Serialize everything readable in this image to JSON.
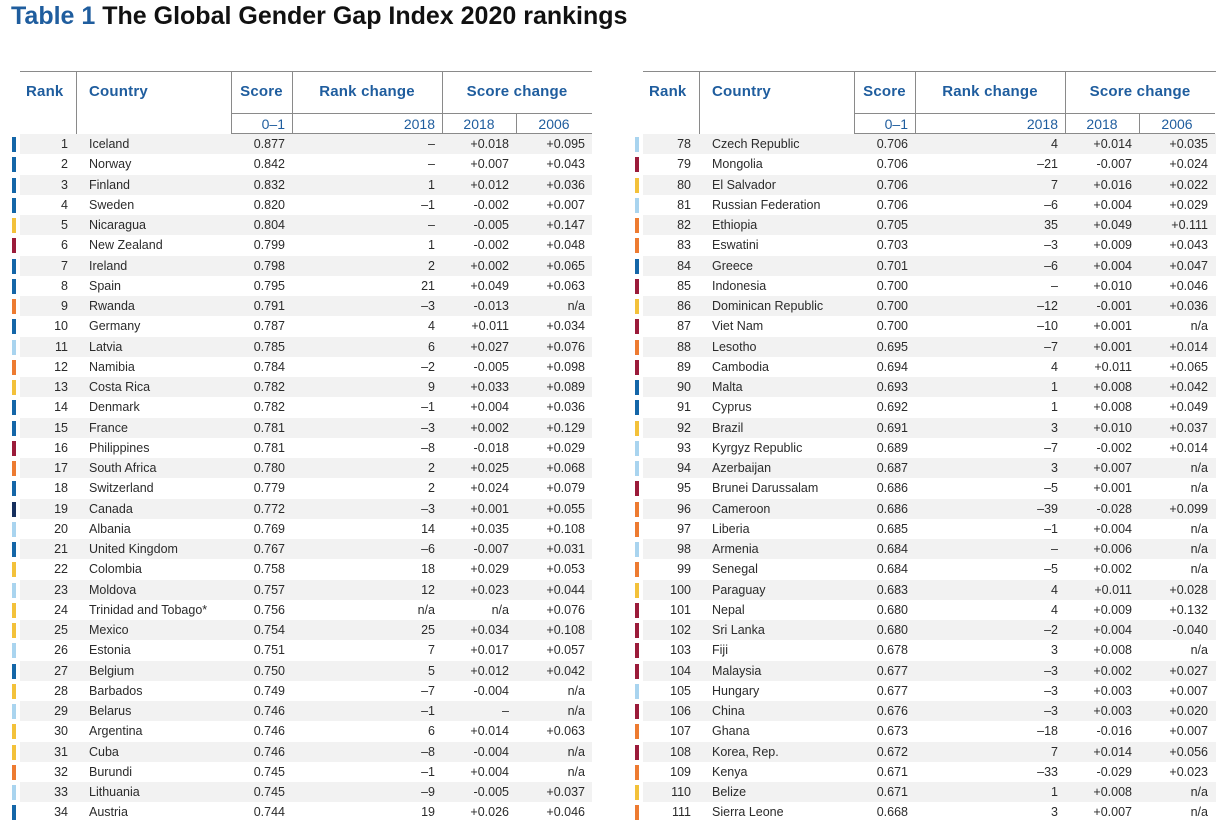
{
  "title": {
    "label": "Table 1",
    "text": "The Global Gender Gap Index 2020 rankings"
  },
  "headers": {
    "rank": "Rank",
    "country": "Country",
    "score": "Score",
    "rank_change": "Rank change",
    "score_change": "Score change",
    "score_sub": "0–1",
    "rank_change_sub": "2018",
    "score_change_sub1": "2018",
    "score_change_sub2": "2006"
  },
  "region_colors": {
    "europe": "#1466a8",
    "latin": "#f3c13a",
    "light": "#a9d4ef",
    "africa": "#ed7b31",
    "asia": "#9b1b3a",
    "northam": "#16305e"
  },
  "left_rows": [
    {
      "rank": "1",
      "country": "Iceland",
      "score": "0.877",
      "rank_change": "–",
      "sc2018": "+0.018",
      "sc2006": "+0.095",
      "region": "europe"
    },
    {
      "rank": "2",
      "country": "Norway",
      "score": "0.842",
      "rank_change": "–",
      "sc2018": "+0.007",
      "sc2006": "+0.043",
      "region": "europe"
    },
    {
      "rank": "3",
      "country": "Finland",
      "score": "0.832",
      "rank_change": "1",
      "sc2018": "+0.012",
      "sc2006": "+0.036",
      "region": "europe"
    },
    {
      "rank": "4",
      "country": "Sweden",
      "score": "0.820",
      "rank_change": "–1",
      "sc2018": "-0.002",
      "sc2006": "+0.007",
      "region": "europe"
    },
    {
      "rank": "5",
      "country": "Nicaragua",
      "score": "0.804",
      "rank_change": "–",
      "sc2018": "-0.005",
      "sc2006": "+0.147",
      "region": "latin"
    },
    {
      "rank": "6",
      "country": "New Zealand",
      "score": "0.799",
      "rank_change": "1",
      "sc2018": "-0.002",
      "sc2006": "+0.048",
      "region": "asia"
    },
    {
      "rank": "7",
      "country": "Ireland",
      "score": "0.798",
      "rank_change": "2",
      "sc2018": "+0.002",
      "sc2006": "+0.065",
      "region": "europe"
    },
    {
      "rank": "8",
      "country": "Spain",
      "score": "0.795",
      "rank_change": "21",
      "sc2018": "+0.049",
      "sc2006": "+0.063",
      "region": "europe"
    },
    {
      "rank": "9",
      "country": "Rwanda",
      "score": "0.791",
      "rank_change": "–3",
      "sc2018": "-0.013",
      "sc2006": "n/a",
      "region": "africa"
    },
    {
      "rank": "10",
      "country": "Germany",
      "score": "0.787",
      "rank_change": "4",
      "sc2018": "+0.011",
      "sc2006": "+0.034",
      "region": "europe"
    },
    {
      "rank": "11",
      "country": "Latvia",
      "score": "0.785",
      "rank_change": "6",
      "sc2018": "+0.027",
      "sc2006": "+0.076",
      "region": "light"
    },
    {
      "rank": "12",
      "country": "Namibia",
      "score": "0.784",
      "rank_change": "–2",
      "sc2018": "-0.005",
      "sc2006": "+0.098",
      "region": "africa"
    },
    {
      "rank": "13",
      "country": "Costa Rica",
      "score": "0.782",
      "rank_change": "9",
      "sc2018": "+0.033",
      "sc2006": "+0.089",
      "region": "latin"
    },
    {
      "rank": "14",
      "country": "Denmark",
      "score": "0.782",
      "rank_change": "–1",
      "sc2018": "+0.004",
      "sc2006": "+0.036",
      "region": "europe"
    },
    {
      "rank": "15",
      "country": "France",
      "score": "0.781",
      "rank_change": "–3",
      "sc2018": "+0.002",
      "sc2006": "+0.129",
      "region": "europe"
    },
    {
      "rank": "16",
      "country": "Philippines",
      "score": "0.781",
      "rank_change": "–8",
      "sc2018": "-0.018",
      "sc2006": "+0.029",
      "region": "asia"
    },
    {
      "rank": "17",
      "country": "South Africa",
      "score": "0.780",
      "rank_change": "2",
      "sc2018": "+0.025",
      "sc2006": "+0.068",
      "region": "africa"
    },
    {
      "rank": "18",
      "country": "Switzerland",
      "score": "0.779",
      "rank_change": "2",
      "sc2018": "+0.024",
      "sc2006": "+0.079",
      "region": "europe"
    },
    {
      "rank": "19",
      "country": "Canada",
      "score": "0.772",
      "rank_change": "–3",
      "sc2018": "+0.001",
      "sc2006": "+0.055",
      "region": "northam"
    },
    {
      "rank": "20",
      "country": "Albania",
      "score": "0.769",
      "rank_change": "14",
      "sc2018": "+0.035",
      "sc2006": "+0.108",
      "region": "light"
    },
    {
      "rank": "21",
      "country": "United Kingdom",
      "score": "0.767",
      "rank_change": "–6",
      "sc2018": "-0.007",
      "sc2006": "+0.031",
      "region": "europe"
    },
    {
      "rank": "22",
      "country": "Colombia",
      "score": "0.758",
      "rank_change": "18",
      "sc2018": "+0.029",
      "sc2006": "+0.053",
      "region": "latin"
    },
    {
      "rank": "23",
      "country": "Moldova",
      "score": "0.757",
      "rank_change": "12",
      "sc2018": "+0.023",
      "sc2006": "+0.044",
      "region": "light"
    },
    {
      "rank": "24",
      "country": "Trinidad and Tobago*",
      "score": "0.756",
      "rank_change": "n/a",
      "sc2018": "n/a",
      "sc2006": "+0.076",
      "region": "latin"
    },
    {
      "rank": "25",
      "country": "Mexico",
      "score": "0.754",
      "rank_change": "25",
      "sc2018": "+0.034",
      "sc2006": "+0.108",
      "region": "latin"
    },
    {
      "rank": "26",
      "country": "Estonia",
      "score": "0.751",
      "rank_change": "7",
      "sc2018": "+0.017",
      "sc2006": "+0.057",
      "region": "light"
    },
    {
      "rank": "27",
      "country": "Belgium",
      "score": "0.750",
      "rank_change": "5",
      "sc2018": "+0.012",
      "sc2006": "+0.042",
      "region": "europe"
    },
    {
      "rank": "28",
      "country": "Barbados",
      "score": "0.749",
      "rank_change": "–7",
      "sc2018": "-0.004",
      "sc2006": "n/a",
      "region": "latin"
    },
    {
      "rank": "29",
      "country": "Belarus",
      "score": "0.746",
      "rank_change": "–1",
      "sc2018": "–",
      "sc2006": "n/a",
      "region": "light"
    },
    {
      "rank": "30",
      "country": "Argentina",
      "score": "0.746",
      "rank_change": "6",
      "sc2018": "+0.014",
      "sc2006": "+0.063",
      "region": "latin"
    },
    {
      "rank": "31",
      "country": "Cuba",
      "score": "0.746",
      "rank_change": "–8",
      "sc2018": "-0.004",
      "sc2006": "n/a",
      "region": "latin"
    },
    {
      "rank": "32",
      "country": "Burundi",
      "score": "0.745",
      "rank_change": "–1",
      "sc2018": "+0.004",
      "sc2006": "n/a",
      "region": "africa"
    },
    {
      "rank": "33",
      "country": "Lithuania",
      "score": "0.745",
      "rank_change": "–9",
      "sc2018": "-0.005",
      "sc2006": "+0.037",
      "region": "light"
    },
    {
      "rank": "34",
      "country": "Austria",
      "score": "0.744",
      "rank_change": "19",
      "sc2018": "+0.026",
      "sc2006": "+0.046",
      "region": "europe"
    }
  ],
  "right_rows": [
    {
      "rank": "78",
      "country": "Czech Republic",
      "score": "0.706",
      "rank_change": "4",
      "sc2018": "+0.014",
      "sc2006": "+0.035",
      "region": "light"
    },
    {
      "rank": "79",
      "country": "Mongolia",
      "score": "0.706",
      "rank_change": "–21",
      "sc2018": "-0.007",
      "sc2006": "+0.024",
      "region": "asia"
    },
    {
      "rank": "80",
      "country": "El Salvador",
      "score": "0.706",
      "rank_change": "7",
      "sc2018": "+0.016",
      "sc2006": "+0.022",
      "region": "latin"
    },
    {
      "rank": "81",
      "country": "Russian Federation",
      "score": "0.706",
      "rank_change": "–6",
      "sc2018": "+0.004",
      "sc2006": "+0.029",
      "region": "light"
    },
    {
      "rank": "82",
      "country": "Ethiopia",
      "score": "0.705",
      "rank_change": "35",
      "sc2018": "+0.049",
      "sc2006": "+0.111",
      "region": "africa"
    },
    {
      "rank": "83",
      "country": "Eswatini",
      "score": "0.703",
      "rank_change": "–3",
      "sc2018": "+0.009",
      "sc2006": "+0.043",
      "region": "africa"
    },
    {
      "rank": "84",
      "country": "Greece",
      "score": "0.701",
      "rank_change": "–6",
      "sc2018": "+0.004",
      "sc2006": "+0.047",
      "region": "europe"
    },
    {
      "rank": "85",
      "country": "Indonesia",
      "score": "0.700",
      "rank_change": "–",
      "sc2018": "+0.010",
      "sc2006": "+0.046",
      "region": "asia"
    },
    {
      "rank": "86",
      "country": "Dominican Republic",
      "score": "0.700",
      "rank_change": "–12",
      "sc2018": "-0.001",
      "sc2006": "+0.036",
      "region": "latin"
    },
    {
      "rank": "87",
      "country": "Viet Nam",
      "score": "0.700",
      "rank_change": "–10",
      "sc2018": "+0.001",
      "sc2006": "n/a",
      "region": "asia"
    },
    {
      "rank": "88",
      "country": "Lesotho",
      "score": "0.695",
      "rank_change": "–7",
      "sc2018": "+0.001",
      "sc2006": "+0.014",
      "region": "africa"
    },
    {
      "rank": "89",
      "country": "Cambodia",
      "score": "0.694",
      "rank_change": "4",
      "sc2018": "+0.011",
      "sc2006": "+0.065",
      "region": "asia"
    },
    {
      "rank": "90",
      "country": "Malta",
      "score": "0.693",
      "rank_change": "1",
      "sc2018": "+0.008",
      "sc2006": "+0.042",
      "region": "europe"
    },
    {
      "rank": "91",
      "country": "Cyprus",
      "score": "0.692",
      "rank_change": "1",
      "sc2018": "+0.008",
      "sc2006": "+0.049",
      "region": "europe"
    },
    {
      "rank": "92",
      "country": "Brazil",
      "score": "0.691",
      "rank_change": "3",
      "sc2018": "+0.010",
      "sc2006": "+0.037",
      "region": "latin"
    },
    {
      "rank": "93",
      "country": "Kyrgyz Republic",
      "score": "0.689",
      "rank_change": "–7",
      "sc2018": "-0.002",
      "sc2006": "+0.014",
      "region": "light"
    },
    {
      "rank": "94",
      "country": "Azerbaijan",
      "score": "0.687",
      "rank_change": "3",
      "sc2018": "+0.007",
      "sc2006": "n/a",
      "region": "light"
    },
    {
      "rank": "95",
      "country": "Brunei Darussalam",
      "score": "0.686",
      "rank_change": "–5",
      "sc2018": "+0.001",
      "sc2006": "n/a",
      "region": "asia"
    },
    {
      "rank": "96",
      "country": "Cameroon",
      "score": "0.686",
      "rank_change": "–39",
      "sc2018": "-0.028",
      "sc2006": "+0.099",
      "region": "africa"
    },
    {
      "rank": "97",
      "country": "Liberia",
      "score": "0.685",
      "rank_change": "–1",
      "sc2018": "+0.004",
      "sc2006": "n/a",
      "region": "africa"
    },
    {
      "rank": "98",
      "country": "Armenia",
      "score": "0.684",
      "rank_change": "–",
      "sc2018": "+0.006",
      "sc2006": "n/a",
      "region": "light"
    },
    {
      "rank": "99",
      "country": "Senegal",
      "score": "0.684",
      "rank_change": "–5",
      "sc2018": "+0.002",
      "sc2006": "n/a",
      "region": "africa"
    },
    {
      "rank": "100",
      "country": "Paraguay",
      "score": "0.683",
      "rank_change": "4",
      "sc2018": "+0.011",
      "sc2006": "+0.028",
      "region": "latin"
    },
    {
      "rank": "101",
      "country": "Nepal",
      "score": "0.680",
      "rank_change": "4",
      "sc2018": "+0.009",
      "sc2006": "+0.132",
      "region": "asia"
    },
    {
      "rank": "102",
      "country": "Sri Lanka",
      "score": "0.680",
      "rank_change": "–2",
      "sc2018": "+0.004",
      "sc2006": "-0.040",
      "region": "asia"
    },
    {
      "rank": "103",
      "country": "Fiji",
      "score": "0.678",
      "rank_change": "3",
      "sc2018": "+0.008",
      "sc2006": "n/a",
      "region": "asia"
    },
    {
      "rank": "104",
      "country": "Malaysia",
      "score": "0.677",
      "rank_change": "–3",
      "sc2018": "+0.002",
      "sc2006": "+0.027",
      "region": "asia"
    },
    {
      "rank": "105",
      "country": "Hungary",
      "score": "0.677",
      "rank_change": "–3",
      "sc2018": "+0.003",
      "sc2006": "+0.007",
      "region": "light"
    },
    {
      "rank": "106",
      "country": "China",
      "score": "0.676",
      "rank_change": "–3",
      "sc2018": "+0.003",
      "sc2006": "+0.020",
      "region": "asia"
    },
    {
      "rank": "107",
      "country": "Ghana",
      "score": "0.673",
      "rank_change": "–18",
      "sc2018": "-0.016",
      "sc2006": "+0.007",
      "region": "africa"
    },
    {
      "rank": "108",
      "country": "Korea, Rep.",
      "score": "0.672",
      "rank_change": "7",
      "sc2018": "+0.014",
      "sc2006": "+0.056",
      "region": "asia"
    },
    {
      "rank": "109",
      "country": "Kenya",
      "score": "0.671",
      "rank_change": "–33",
      "sc2018": "-0.029",
      "sc2006": "+0.023",
      "region": "africa"
    },
    {
      "rank": "110",
      "country": "Belize",
      "score": "0.671",
      "rank_change": "1",
      "sc2018": "+0.008",
      "sc2006": "n/a",
      "region": "latin"
    },
    {
      "rank": "111",
      "country": "Sierra Leone",
      "score": "0.668",
      "rank_change": "3",
      "sc2018": "+0.007",
      "sc2006": "n/a",
      "region": "africa"
    }
  ]
}
